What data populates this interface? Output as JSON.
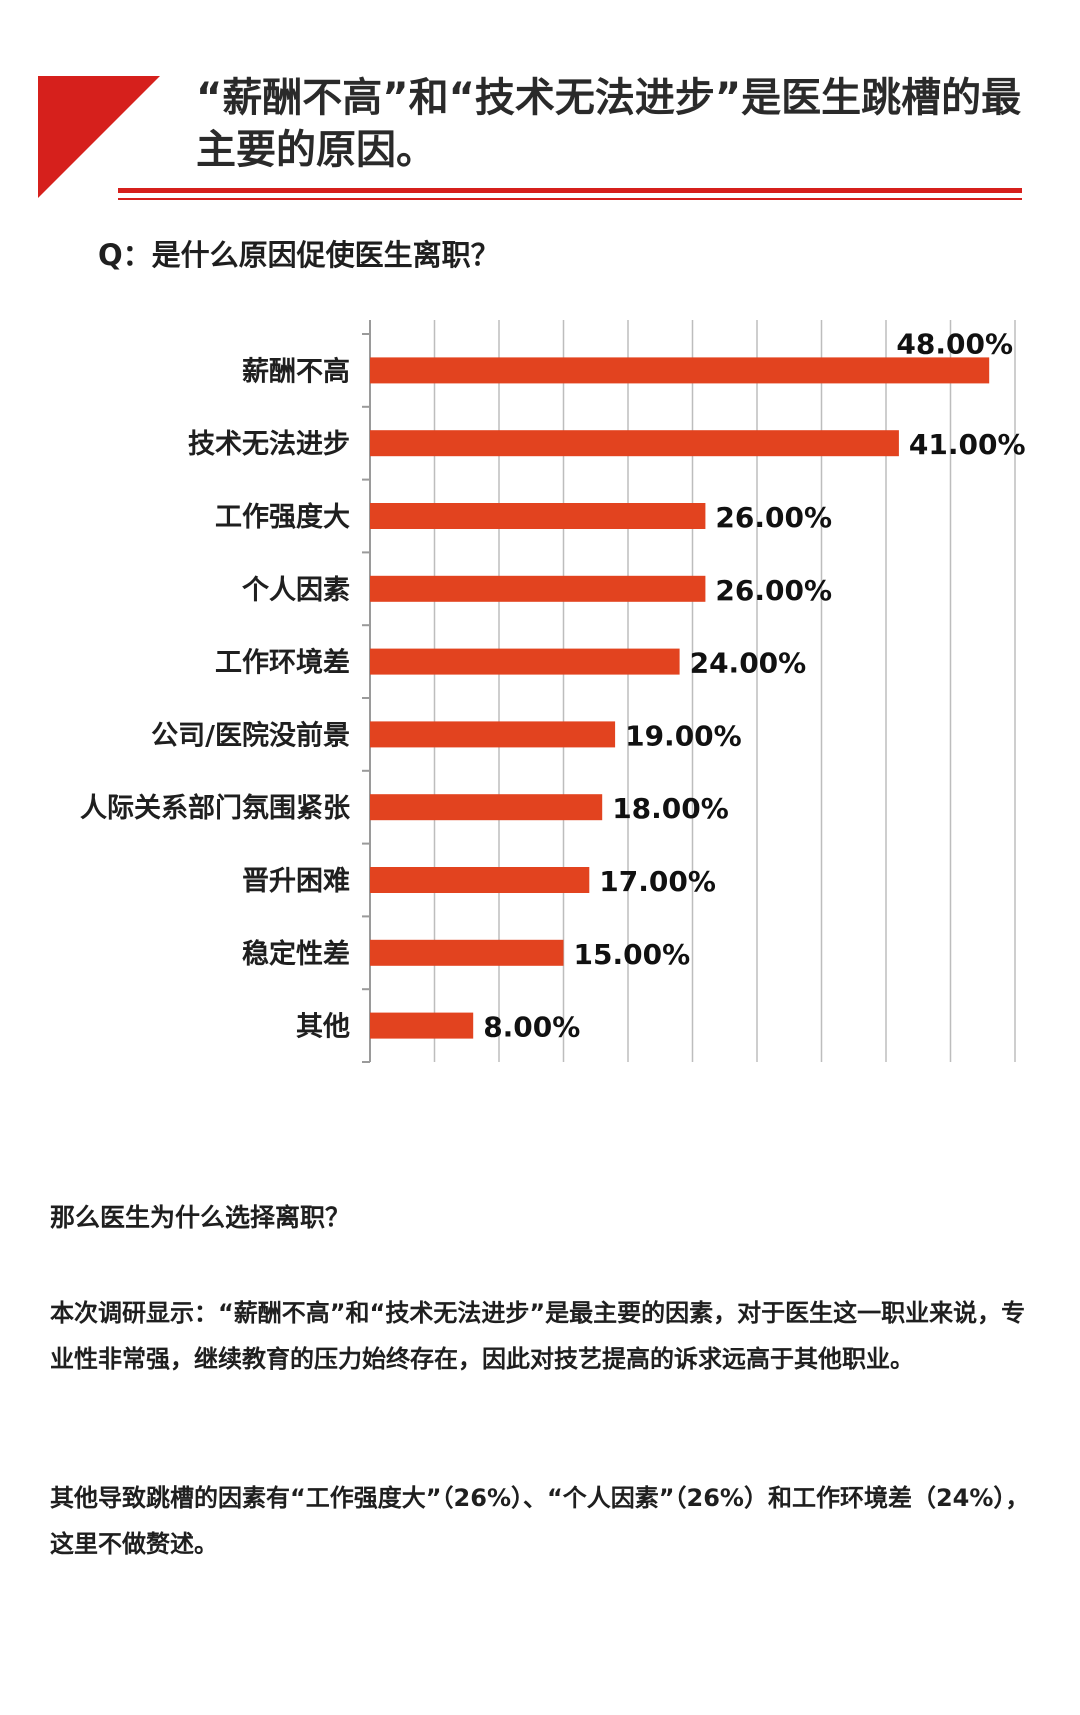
{
  "header": {
    "title": "“薪酬不高”和“技术无法进步”是医生跳槽的最主要的原因。",
    "accent_color": "#d6201c"
  },
  "question": "Q：是什么原因促使医生离职？",
  "chart_data": {
    "type": "bar",
    "orientation": "horizontal",
    "categories": [
      "薪酬不高",
      "技术无法进步",
      "工作强度大",
      "个人因素",
      "工作环境差",
      "公司/医院没前景",
      "人际关系部门氛围紧张",
      "晋升困难",
      "稳定性差",
      "其他"
    ],
    "values": [
      48,
      41,
      26,
      26,
      24,
      19,
      18,
      17,
      15,
      8
    ],
    "value_labels": [
      "48.00%",
      "41.00%",
      "26.00%",
      "26.00%",
      "24.00%",
      "19.00%",
      "18.00%",
      "17.00%",
      "15.00%",
      "8.00%"
    ],
    "xlim": [
      0,
      50
    ],
    "x_gridline_step": 5,
    "grid": true,
    "bar_color": "#e2431f",
    "title": "",
    "xlabel": "",
    "ylabel": ""
  },
  "text": {
    "heading": "那么医生为什么选择离职？",
    "paragraph1": "本次调研显示：“薪酬不高”和“技术无法进步”是最主要的因素，对于医生这一职业来说，专业性非常强，继续教育的压力始终存在，因此对技艺提高的诉求远高于其他职业。",
    "paragraph2": "其他导致跳槽的因素有“工作强度大”（26%）、“个人因素”（26%）和工作环境差（24%），这里不做赘述。"
  }
}
